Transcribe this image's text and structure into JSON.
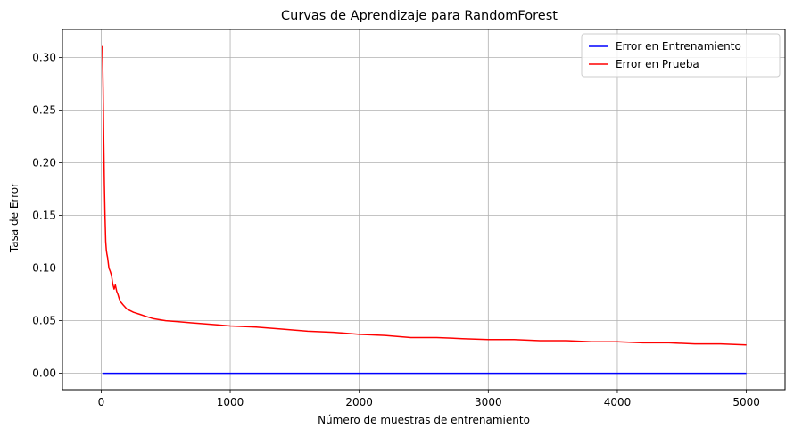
{
  "chart_data": {
    "type": "line",
    "title": "Curvas de Aprendizaje para RandomForest",
    "xlabel": "Número de muestras de entrenamiento",
    "ylabel": "Tasa de Error",
    "xlim": [
      -300,
      5300
    ],
    "ylim": [
      -0.0156,
      0.3268
    ],
    "xticks": [
      0,
      1000,
      2000,
      3000,
      4000,
      5000
    ],
    "xtick_labels": [
      "0",
      "1000",
      "2000",
      "3000",
      "4000",
      "5000"
    ],
    "yticks": [
      0.0,
      0.05,
      0.1,
      0.15,
      0.2,
      0.25,
      0.3
    ],
    "ytick_labels": [
      "0.00",
      "0.05",
      "0.10",
      "0.15",
      "0.20",
      "0.25",
      "0.30"
    ],
    "grid": true,
    "legend_position": "top-right",
    "series": [
      {
        "name": "Error en Entrenamiento",
        "color": "#0000ff",
        "x": [
          10,
          400,
          1000,
          2000,
          3000,
          4000,
          5000
        ],
        "y": [
          0.0,
          0.0,
          0.0,
          0.0,
          0.0,
          0.0,
          0.0
        ]
      },
      {
        "name": "Error en Prueba",
        "color": "#ff0000",
        "x": [
          10,
          15,
          20,
          25,
          30,
          35,
          40,
          45,
          50,
          60,
          70,
          80,
          90,
          100,
          110,
          120,
          130,
          140,
          150,
          170,
          200,
          250,
          300,
          350,
          400,
          500,
          600,
          700,
          800,
          900,
          1000,
          1200,
          1400,
          1600,
          1800,
          2000,
          2200,
          2400,
          2600,
          2800,
          3000,
          3200,
          3400,
          3600,
          3800,
          4000,
          4200,
          4400,
          4600,
          4800,
          5000
        ],
        "y": [
          0.311,
          0.27,
          0.22,
          0.18,
          0.15,
          0.125,
          0.117,
          0.113,
          0.11,
          0.1,
          0.097,
          0.093,
          0.085,
          0.08,
          0.084,
          0.078,
          0.075,
          0.071,
          0.068,
          0.065,
          0.061,
          0.058,
          0.056,
          0.054,
          0.052,
          0.05,
          0.049,
          0.048,
          0.047,
          0.046,
          0.045,
          0.044,
          0.042,
          0.04,
          0.039,
          0.037,
          0.036,
          0.034,
          0.034,
          0.033,
          0.032,
          0.032,
          0.031,
          0.031,
          0.03,
          0.03,
          0.029,
          0.029,
          0.028,
          0.028,
          0.027
        ]
      }
    ]
  }
}
